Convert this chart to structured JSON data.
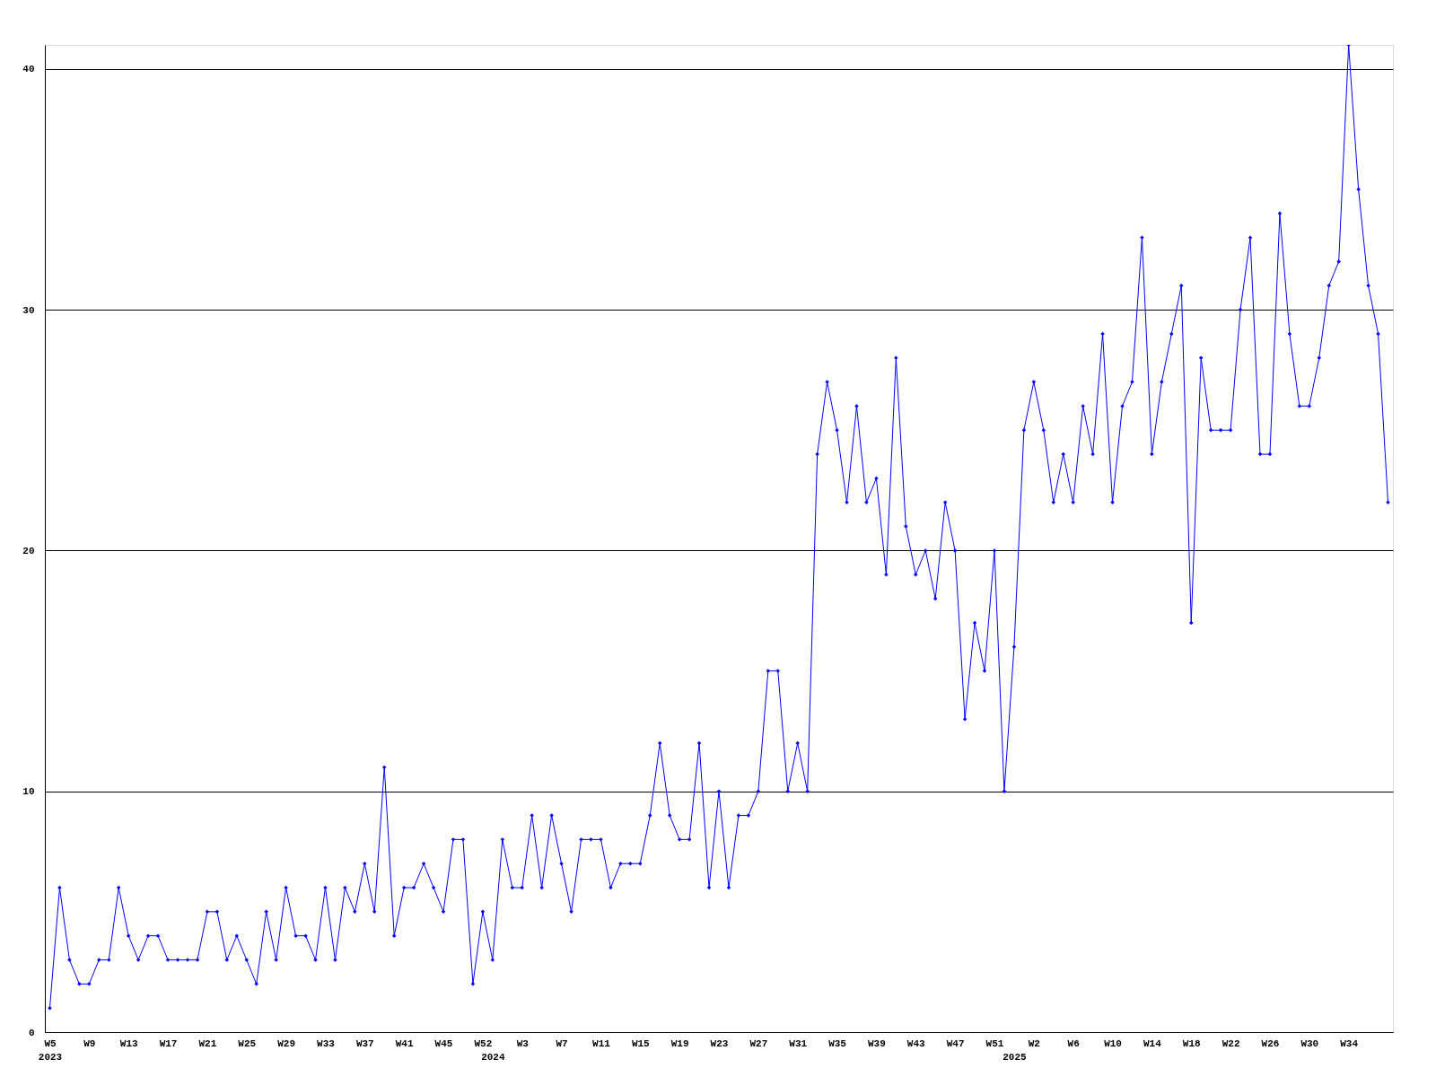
{
  "chart_data": {
    "type": "line",
    "categories": [
      "W5\n2023",
      null,
      null,
      null,
      "W9",
      null,
      null,
      null,
      "W13",
      null,
      null,
      null,
      "W17",
      null,
      null,
      null,
      "W21",
      null,
      null,
      null,
      "W25",
      null,
      null,
      null,
      "W29",
      null,
      null,
      null,
      "W33",
      null,
      null,
      null,
      "W37",
      null,
      null,
      null,
      "W41",
      null,
      null,
      null,
      "W45",
      null,
      null,
      null,
      "W52",
      "\n2024",
      null,
      null,
      "W3",
      null,
      null,
      null,
      "W7",
      null,
      null,
      null,
      "W11",
      null,
      null,
      null,
      "W15",
      null,
      null,
      null,
      "W19",
      null,
      null,
      null,
      "W23",
      null,
      null,
      null,
      "W27",
      null,
      null,
      null,
      "W31",
      null,
      null,
      null,
      "W35",
      null,
      null,
      null,
      "W39",
      null,
      null,
      null,
      "W43",
      null,
      null,
      null,
      "W47",
      null,
      null,
      null,
      "W51",
      null,
      "\n2025",
      null,
      "W2",
      null,
      null,
      null,
      "W6",
      null,
      null,
      null,
      "W10",
      null,
      null,
      null,
      "W14",
      null,
      null,
      null,
      "W18",
      null,
      null,
      null,
      "W22",
      null,
      null,
      null,
      "W26",
      null,
      null,
      null,
      "W30",
      null,
      null,
      null,
      "W34",
      null,
      null,
      null,
      null
    ],
    "series": [
      {
        "color": "#0000ff",
        "values": [
          1,
          6,
          3,
          2,
          2,
          3,
          3,
          6,
          4,
          3,
          4,
          4,
          3,
          3,
          3,
          3,
          5,
          5,
          3,
          4,
          3,
          2,
          5,
          3,
          6,
          4,
          4,
          3,
          6,
          3,
          6,
          5,
          7,
          5,
          11,
          4,
          6,
          6,
          7,
          6,
          5,
          8,
          8,
          2,
          5,
          3,
          8,
          6,
          6,
          9,
          6,
          9,
          7,
          5,
          8,
          8,
          8,
          6,
          7,
          7,
          7,
          9,
          12,
          9,
          8,
          8,
          12,
          6,
          10,
          6,
          9,
          9,
          10,
          15,
          15,
          10,
          12,
          10,
          24,
          27,
          25,
          22,
          26,
          22,
          23,
          19,
          28,
          21,
          19,
          20,
          18,
          22,
          20,
          13,
          17,
          15,
          20,
          10,
          16,
          25,
          27,
          25,
          22,
          24,
          22,
          26,
          24,
          29,
          22,
          26,
          27,
          33,
          24,
          27,
          29,
          31,
          17,
          28,
          25,
          25,
          25,
          30,
          33,
          24,
          24,
          34,
          29,
          26,
          26,
          28,
          31,
          32,
          41,
          35,
          31,
          29,
          22
        ]
      }
    ],
    "ylim": [
      0,
      41
    ],
    "yticks": [
      0,
      10,
      20,
      30,
      40
    ],
    "grid": "y",
    "marker": "diamond",
    "line_style": "solid"
  }
}
